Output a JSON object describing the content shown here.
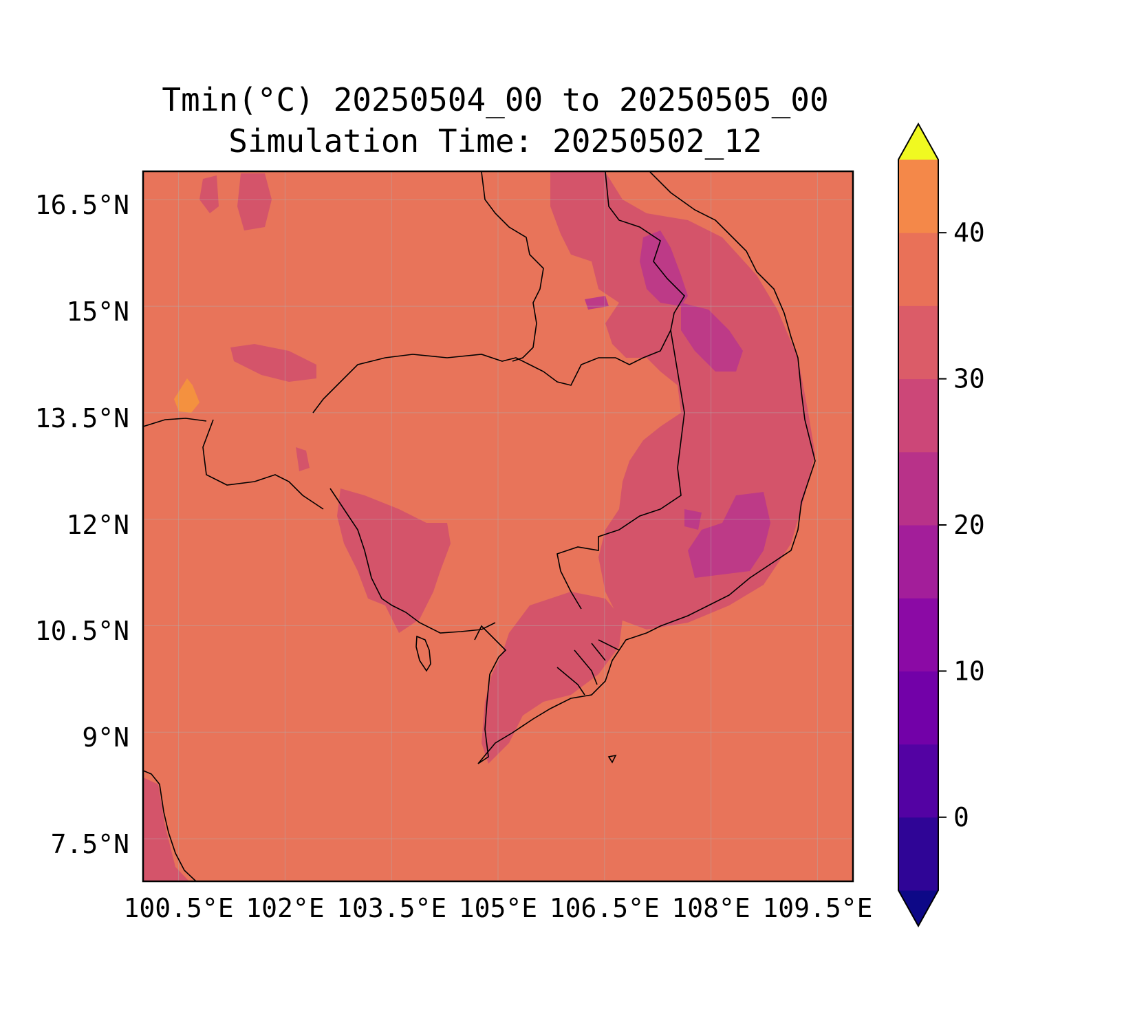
{
  "title": "Tmin(°C) 20250504_00 to 20250505_00",
  "subtitle": "Simulation Time: 20250502_12",
  "map": {
    "lon_range": [
      100.2,
      110.2
    ],
    "lat_range": [
      6.9,
      16.9
    ],
    "lon_ticks": [
      "100.5°E",
      "102°E",
      "103.5°E",
      "105°E",
      "106.5°E",
      "108°E",
      "109.5°E"
    ],
    "lat_ticks": [
      "16.5°N",
      "15°N",
      "13.5°N",
      "12°N",
      "10.5°N",
      "9°N",
      "7.5°N"
    ],
    "grid": true
  },
  "colorbar": {
    "ticks": [
      "0",
      "10",
      "20",
      "30",
      "40"
    ],
    "range": [
      -5,
      45
    ],
    "levels": [
      -5,
      0,
      5,
      10,
      15,
      20,
      25,
      30,
      35,
      40,
      45
    ],
    "extend": "both",
    "colors": [
      "#0d0887",
      "#2f0596",
      "#5302a3",
      "#7201a8",
      "#8b0aa5",
      "#a31e9a",
      "#b83289",
      "#cc4778",
      "#db5c68",
      "#e97158",
      "#f48849",
      "#febc2a",
      "#f0f921"
    ],
    "background_color": "#e8745a",
    "band_colors": {
      "20-25": "#d4546a",
      "15-20": "#bd3a87",
      "25-30": "#e8745a",
      "30-35": "#f4913f"
    }
  }
}
